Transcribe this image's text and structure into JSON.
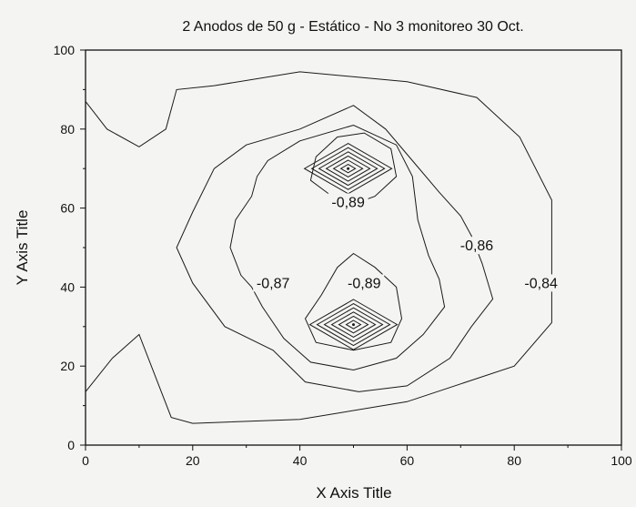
{
  "chart_data": {
    "type": "contour",
    "title": "2 Anodos de 50 g - Estático - No 3 monitoreo 30 Oct.",
    "xlabel": "X Axis Title",
    "ylabel": "Y Axis Title",
    "xlim": [
      0,
      100
    ],
    "ylim": [
      0,
      100
    ],
    "xticks": [
      "0",
      "20",
      "40",
      "60",
      "80",
      "100"
    ],
    "yticks": [
      "0",
      "20",
      "40",
      "60",
      "80",
      "100"
    ],
    "grid": false,
    "contours": [
      {
        "level": "-0,84",
        "closed": false,
        "points": [
          [
            0,
            87
          ],
          [
            4,
            80
          ],
          [
            10,
            75.5
          ],
          [
            15,
            80
          ],
          [
            17,
            90
          ],
          [
            24,
            91
          ],
          [
            40,
            94.5
          ],
          [
            60,
            92
          ],
          [
            73,
            88
          ],
          [
            81,
            78
          ],
          [
            87,
            62
          ],
          [
            87,
            44
          ],
          [
            87,
            31
          ],
          [
            80,
            20
          ],
          [
            60,
            11
          ],
          [
            40,
            6.5
          ],
          [
            20,
            5.5
          ],
          [
            16,
            7
          ],
          [
            10,
            28
          ],
          [
            5,
            22
          ],
          [
            0,
            13.5
          ]
        ]
      },
      {
        "level": "-0,86",
        "closed": true,
        "points": [
          [
            50,
            86
          ],
          [
            40,
            80
          ],
          [
            30,
            76
          ],
          [
            24,
            70
          ],
          [
            20,
            59
          ],
          [
            17,
            50
          ],
          [
            20,
            41
          ],
          [
            26,
            30
          ],
          [
            35,
            24
          ],
          [
            41,
            16
          ],
          [
            51,
            13.5
          ],
          [
            60,
            15
          ],
          [
            68,
            22
          ],
          [
            72,
            30
          ],
          [
            76,
            37
          ],
          [
            74,
            46
          ],
          [
            72,
            53
          ],
          [
            70,
            58
          ],
          [
            66,
            64
          ],
          [
            61,
            72
          ],
          [
            56,
            80
          ]
        ]
      },
      {
        "level": "-0,87",
        "closed": true,
        "points": [
          [
            40,
            77
          ],
          [
            34,
            72
          ],
          [
            32,
            68
          ],
          [
            31,
            63
          ],
          [
            28,
            57
          ],
          [
            27,
            50
          ],
          [
            29,
            43
          ],
          [
            31,
            40
          ],
          [
            33,
            35
          ],
          [
            37,
            27
          ],
          [
            42,
            21
          ],
          [
            50,
            19
          ],
          [
            58,
            22
          ],
          [
            63,
            28
          ],
          [
            67,
            35
          ],
          [
            66,
            42
          ],
          [
            64,
            48
          ],
          [
            62,
            57
          ],
          [
            61,
            68
          ],
          [
            58,
            76
          ],
          [
            50,
            81
          ]
        ]
      },
      {
        "level": "-0,89",
        "closed": true,
        "points": [
          [
            47,
            78
          ],
          [
            52,
            79
          ],
          [
            57,
            75
          ],
          [
            58,
            68
          ],
          [
            54,
            63
          ],
          [
            50,
            61
          ],
          [
            46,
            63
          ],
          [
            42,
            67
          ],
          [
            43,
            73
          ]
        ]
      },
      {
        "level": "-0,89",
        "closed": true,
        "points": [
          [
            50,
            48.5
          ],
          [
            54,
            45
          ],
          [
            58,
            40
          ],
          [
            59,
            32
          ],
          [
            57,
            26
          ],
          [
            50,
            24
          ],
          [
            43,
            26
          ],
          [
            41,
            32
          ],
          [
            44,
            38
          ],
          [
            47,
            45
          ]
        ]
      }
    ],
    "peaks": [
      {
        "x": 49,
        "y": 70,
        "rings": 6
      },
      {
        "x": 50,
        "y": 30.5,
        "rings": 6
      }
    ],
    "labels": [
      {
        "text": "-0,89",
        "x": 49,
        "y": 60.5
      },
      {
        "text": "-0,86",
        "x": 73,
        "y": 49.5
      },
      {
        "text": "-0,87",
        "x": 35,
        "y": 40
      },
      {
        "text": "-0,89",
        "x": 52,
        "y": 40
      },
      {
        "text": "-0,84",
        "x": 85,
        "y": 40
      }
    ]
  }
}
